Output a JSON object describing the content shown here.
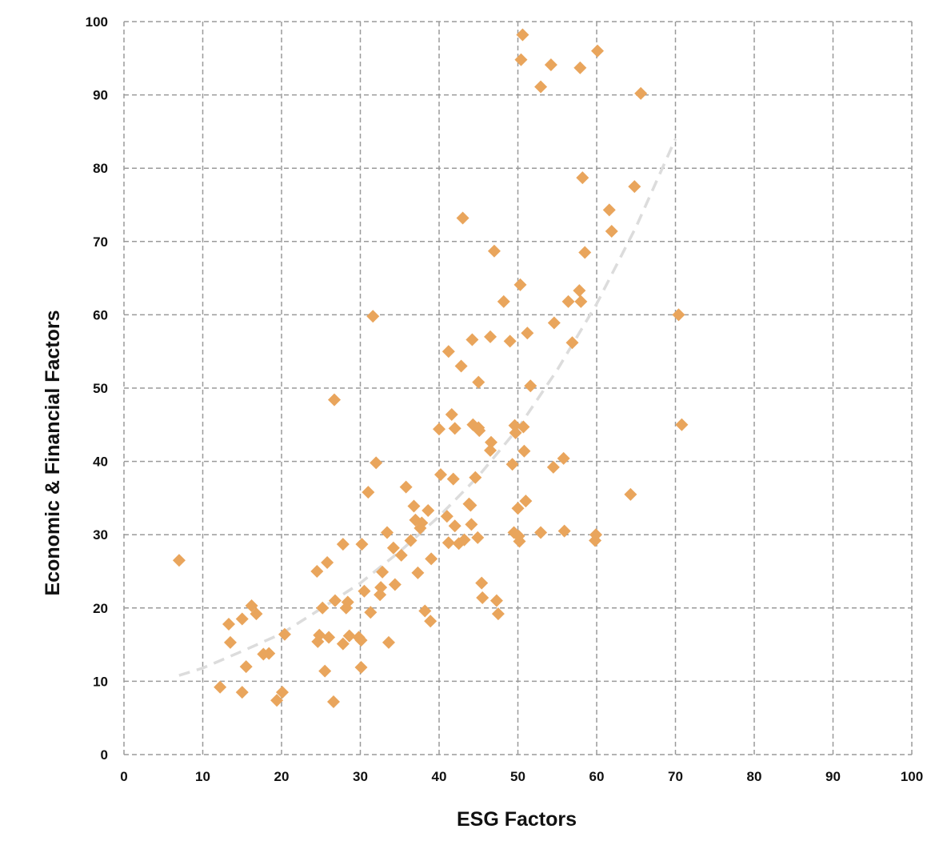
{
  "chart_data": {
    "type": "scatter",
    "title": "",
    "xlabel": "ESG Factors",
    "ylabel": "Economic & Financial Factors",
    "xlim": [
      0,
      100
    ],
    "ylim": [
      0,
      100
    ],
    "x_ticks": [
      "0",
      "10",
      "20",
      "30",
      "40",
      "50",
      "60",
      "70",
      "80",
      "90",
      "100"
    ],
    "y_ticks": [
      "0",
      "10",
      "20",
      "30",
      "40",
      "50",
      "60",
      "70",
      "80",
      "90",
      "100"
    ],
    "grid": true,
    "marker": "diamond",
    "marker_color": "#e9a55c",
    "trendline_color": "#dcdcdc",
    "series": [
      {
        "points": [
          [
            7,
            26.5
          ],
          [
            12.2,
            9.2
          ],
          [
            13.3,
            17.8
          ],
          [
            13.5,
            15.3
          ],
          [
            15,
            18.5
          ],
          [
            15,
            8.5
          ],
          [
            15.5,
            12
          ],
          [
            16.2,
            20.3
          ],
          [
            16.8,
            19.2
          ],
          [
            17.7,
            13.7
          ],
          [
            18.4,
            13.8
          ],
          [
            19.4,
            7.4
          ],
          [
            20.1,
            8.5
          ],
          [
            20.4,
            16.4
          ],
          [
            24.5,
            25
          ],
          [
            24.6,
            15.4
          ],
          [
            24.8,
            16.3
          ],
          [
            25.2,
            20
          ],
          [
            25.5,
            11.4
          ],
          [
            25.8,
            26.2
          ],
          [
            26,
            16
          ],
          [
            26.6,
            7.2
          ],
          [
            26.7,
            48.4
          ],
          [
            26.8,
            21
          ],
          [
            27.8,
            15.1
          ],
          [
            27.8,
            28.7
          ],
          [
            28.2,
            20
          ],
          [
            28.4,
            20.8
          ],
          [
            28.6,
            16.2
          ],
          [
            29.8,
            16
          ],
          [
            30.1,
            15.6
          ],
          [
            30.1,
            11.9
          ],
          [
            30.2,
            28.7
          ],
          [
            30.5,
            22.3
          ],
          [
            31,
            35.8
          ],
          [
            31.3,
            19.4
          ],
          [
            31.6,
            59.8
          ],
          [
            32,
            39.8
          ],
          [
            32.5,
            21.8
          ],
          [
            32.6,
            22.8
          ],
          [
            32.8,
            24.9
          ],
          [
            33.4,
            30.3
          ],
          [
            33.6,
            15.3
          ],
          [
            34.2,
            28.2
          ],
          [
            34.4,
            23.2
          ],
          [
            35.2,
            27.2
          ],
          [
            35.8,
            36.5
          ],
          [
            36.4,
            29.2
          ],
          [
            36.8,
            33.9
          ],
          [
            37,
            32
          ],
          [
            37.3,
            24.8
          ],
          [
            37.6,
            30.9
          ],
          [
            37.8,
            31.6
          ],
          [
            38.2,
            19.6
          ],
          [
            38.6,
            33.3
          ],
          [
            38.9,
            18.2
          ],
          [
            39,
            26.7
          ],
          [
            40,
            44.4
          ],
          [
            40.2,
            38.2
          ],
          [
            41,
            32.5
          ],
          [
            41.2,
            28.9
          ],
          [
            41.2,
            55
          ],
          [
            41.6,
            46.4
          ],
          [
            41.8,
            37.6
          ],
          [
            42,
            31.2
          ],
          [
            42,
            44.5
          ],
          [
            42.5,
            28.8
          ],
          [
            42.8,
            53
          ],
          [
            43,
            73.2
          ],
          [
            43.2,
            29.3
          ],
          [
            43.8,
            34.2
          ],
          [
            44,
            34
          ],
          [
            44.1,
            31.4
          ],
          [
            44.2,
            56.6
          ],
          [
            44.3,
            45
          ],
          [
            44.6,
            37.8
          ],
          [
            44.9,
            29.6
          ],
          [
            45,
            50.8
          ],
          [
            45,
            44.6
          ],
          [
            45.1,
            44.2
          ],
          [
            45.4,
            23.4
          ],
          [
            45.5,
            21.4
          ],
          [
            46.5,
            57
          ],
          [
            46.5,
            41.5
          ],
          [
            46.6,
            42.6
          ],
          [
            47,
            68.7
          ],
          [
            47.3,
            21
          ],
          [
            47.5,
            19.2
          ],
          [
            48.2,
            61.8
          ],
          [
            49,
            56.4
          ],
          [
            49.3,
            39.6
          ],
          [
            49.5,
            30.3
          ],
          [
            49.6,
            44.9
          ],
          [
            49.7,
            43.9
          ],
          [
            50,
            33.6
          ],
          [
            50.1,
            29.8
          ],
          [
            50.2,
            29.1
          ],
          [
            50.3,
            64.1
          ],
          [
            50.4,
            94.8
          ],
          [
            50.6,
            98.2
          ],
          [
            50.7,
            44.7
          ],
          [
            50.8,
            41.4
          ],
          [
            51,
            34.6
          ],
          [
            51.2,
            57.5
          ],
          [
            51.6,
            50.3
          ],
          [
            52.9,
            91.1
          ],
          [
            52.9,
            30.3
          ],
          [
            54.2,
            94.1
          ],
          [
            54.5,
            39.2
          ],
          [
            54.6,
            58.9
          ],
          [
            55.8,
            40.4
          ],
          [
            55.9,
            30.5
          ],
          [
            56.4,
            61.8
          ],
          [
            56.9,
            56.2
          ],
          [
            57.8,
            63.3
          ],
          [
            57.9,
            93.7
          ],
          [
            58,
            61.8
          ],
          [
            58.2,
            78.7
          ],
          [
            58.5,
            68.5
          ],
          [
            59.8,
            29.2
          ],
          [
            59.9,
            30
          ],
          [
            60.1,
            96
          ],
          [
            61.6,
            74.3
          ],
          [
            61.9,
            71.4
          ],
          [
            64.3,
            35.5
          ],
          [
            64.8,
            77.5
          ],
          [
            65.6,
            90.2
          ],
          [
            70.4,
            60
          ],
          [
            70.8,
            45
          ]
        ]
      }
    ],
    "trendline": [
      [
        7,
        10.8
      ],
      [
        10,
        11.8
      ],
      [
        15,
        14.1
      ],
      [
        20,
        16.5
      ],
      [
        25,
        19.9
      ],
      [
        30,
        23.4
      ],
      [
        35,
        27.7
      ],
      [
        40,
        32.5
      ],
      [
        45,
        38
      ],
      [
        50,
        44.5
      ],
      [
        55,
        52.5
      ],
      [
        60,
        61.5
      ],
      [
        65,
        72
      ],
      [
        70,
        84
      ]
    ]
  }
}
